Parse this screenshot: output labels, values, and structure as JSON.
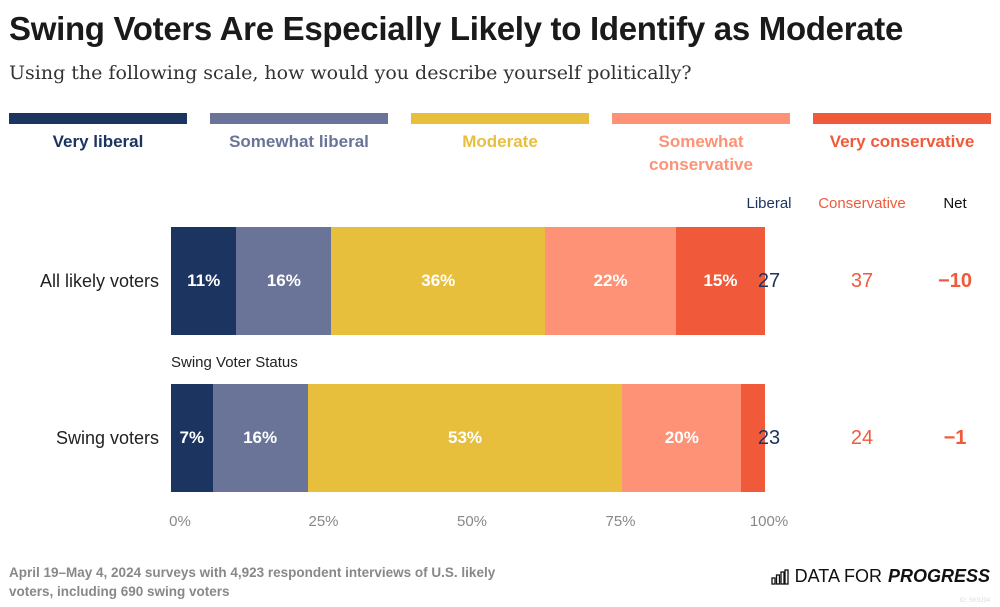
{
  "title": "Swing Voters Are Especially Likely to Identify as Moderate",
  "subtitle": "Using the following scale, how would you describe yourself politically?",
  "chart_data": {
    "type": "bar",
    "stacked": true,
    "orientation": "horizontal",
    "categories": [
      "All likely voters",
      "Swing voters"
    ],
    "series": [
      {
        "name": "Very liberal",
        "color": "#1c3560",
        "values": [
          11,
          7
        ]
      },
      {
        "name": "Somewhat liberal",
        "color": "#6a7498",
        "values": [
          16,
          16
        ]
      },
      {
        "name": "Moderate",
        "color": "#e8bf3d",
        "values": [
          36,
          53
        ]
      },
      {
        "name": "Somewhat conservative",
        "color": "#fd9276",
        "values": [
          22,
          20
        ]
      },
      {
        "name": "Very conservative",
        "color": "#f05a3b",
        "values": [
          15,
          4
        ]
      }
    ],
    "data_labels": [
      [
        "11%",
        "16%",
        "36%",
        "22%",
        "15%"
      ],
      [
        "7%",
        "16%",
        "53%",
        "20%",
        ""
      ]
    ],
    "xlim": [
      0,
      100
    ],
    "xticks": [
      "0%",
      "25%",
      "50%",
      "75%",
      "100%"
    ],
    "group_label": "Swing Voter Status",
    "summary_headers": {
      "liberal": "Liberal",
      "conservative": "Conservative",
      "net": "Net"
    },
    "summary": [
      {
        "liberal": "27",
        "conservative": "37",
        "net": "−10"
      },
      {
        "liberal": "23",
        "conservative": "24",
        "net": "−1"
      }
    ],
    "legend": "top"
  },
  "note": "April 19–May 4, 2024 surveys with 4,923 respondent interviews of U.S. likely voters, including 690 swing voters",
  "logo": {
    "text1": "DATA FOR",
    "text2": "PROGRESS",
    "icon": "bar-chart-icon"
  },
  "id": "ID: SK9J94"
}
